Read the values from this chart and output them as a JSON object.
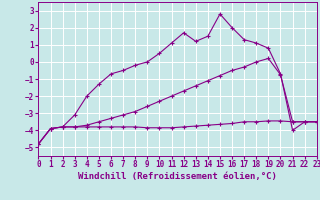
{
  "bg_color": "#c8e8e8",
  "grid_color": "#ffffff",
  "line_color": "#880088",
  "xlabel": "Windchill (Refroidissement éolien,°C)",
  "xlabel_fontsize": 6.5,
  "tick_fontsize": 5.5,
  "xlim": [
    0,
    23
  ],
  "ylim": [
    -5.5,
    3.5
  ],
  "yticks": [
    -5,
    -4,
    -3,
    -2,
    -1,
    0,
    1,
    2,
    3
  ],
  "xticks": [
    0,
    1,
    2,
    3,
    4,
    5,
    6,
    7,
    8,
    9,
    10,
    11,
    12,
    13,
    14,
    15,
    16,
    17,
    18,
    19,
    20,
    21,
    22,
    23
  ],
  "series": [
    {
      "x": [
        0,
        1,
        2,
        3,
        4,
        5,
        6,
        7,
        8,
        9,
        10,
        11,
        12,
        13,
        14,
        15,
        16,
        17,
        18,
        19,
        20,
        21,
        22,
        23
      ],
      "y": [
        -4.8,
        -3.9,
        -3.8,
        -3.8,
        -3.8,
        -3.8,
        -3.8,
        -3.8,
        -3.8,
        -3.85,
        -3.85,
        -3.85,
        -3.8,
        -3.75,
        -3.7,
        -3.65,
        -3.6,
        -3.5,
        -3.5,
        -3.45,
        -3.45,
        -3.5,
        -3.5,
        -3.5
      ]
    },
    {
      "x": [
        0,
        1,
        2,
        3,
        4,
        5,
        6,
        7,
        8,
        9,
        10,
        11,
        12,
        13,
        14,
        15,
        16,
        17,
        18,
        19,
        20,
        21,
        22,
        23
      ],
      "y": [
        -4.8,
        -3.9,
        -3.8,
        -3.8,
        -3.7,
        -3.5,
        -3.3,
        -3.1,
        -2.9,
        -2.6,
        -2.3,
        -2.0,
        -1.7,
        -1.4,
        -1.1,
        -0.8,
        -0.5,
        -0.3,
        0.0,
        0.2,
        -0.75,
        -3.5,
        -3.5,
        -3.5
      ]
    },
    {
      "x": [
        0,
        1,
        2,
        3,
        4,
        5,
        6,
        7,
        8,
        9,
        10,
        11,
        12,
        13,
        14,
        15,
        16,
        17,
        18,
        19,
        20,
        21,
        22,
        23
      ],
      "y": [
        -4.8,
        -3.9,
        -3.8,
        -3.1,
        -2.0,
        -1.3,
        -0.7,
        -0.5,
        -0.2,
        0.0,
        0.5,
        1.1,
        1.7,
        1.2,
        1.5,
        2.8,
        2.0,
        1.3,
        1.1,
        0.8,
        -0.7,
        -4.0,
        -3.5,
        -3.5
      ]
    }
  ]
}
